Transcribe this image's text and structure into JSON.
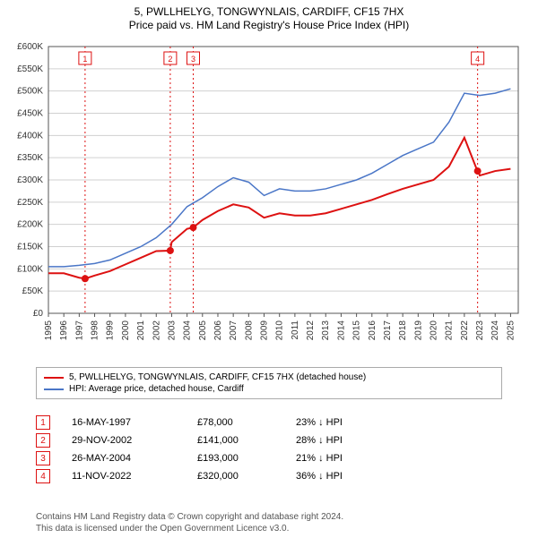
{
  "title_line1": "5, PWLLHELYG, TONGWYNLAIS, CARDIFF, CF15 7HX",
  "title_line2": "Price paid vs. HM Land Registry's House Price Index (HPI)",
  "style": {
    "background_color": "#ffffff",
    "grid_color": "#d0d0d0",
    "axis_color": "#555555",
    "title_fontsize": 12,
    "tick_fontsize": 10,
    "legend_fontsize": 10,
    "footer_fontsize": 10
  },
  "chart": {
    "type": "line",
    "xlim": [
      1995,
      2025.5
    ],
    "xtick_step": 1,
    "ylim": [
      0,
      600000
    ],
    "ytick_step": 50000,
    "yticks": [
      "£0",
      "£50K",
      "£100K",
      "£150K",
      "£200K",
      "£250K",
      "£300K",
      "£350K",
      "£400K",
      "£450K",
      "£500K",
      "£550K",
      "£600K"
    ],
    "xticks": [
      "1995",
      "1996",
      "1997",
      "1998",
      "1999",
      "2000",
      "2001",
      "2002",
      "2003",
      "2004",
      "2005",
      "2006",
      "2007",
      "2008",
      "2009",
      "2010",
      "2011",
      "2012",
      "2013",
      "2014",
      "2015",
      "2016",
      "2017",
      "2018",
      "2019",
      "2020",
      "2021",
      "2022",
      "2023",
      "2024",
      "2025"
    ],
    "series": [
      {
        "key": "price_paid",
        "color": "#dd1111",
        "line_width": 2,
        "points": [
          [
            1995,
            90000
          ],
          [
            1996,
            90000
          ],
          [
            1997,
            80000
          ],
          [
            1997.4,
            78000
          ],
          [
            1998,
            85000
          ],
          [
            1999,
            95000
          ],
          [
            2000,
            110000
          ],
          [
            2001,
            125000
          ],
          [
            2002,
            140000
          ],
          [
            2002.9,
            141000
          ],
          [
            2003,
            160000
          ],
          [
            2004,
            190000
          ],
          [
            2004.4,
            193000
          ],
          [
            2005,
            210000
          ],
          [
            2006,
            230000
          ],
          [
            2007,
            245000
          ],
          [
            2008,
            238000
          ],
          [
            2009,
            215000
          ],
          [
            2010,
            225000
          ],
          [
            2011,
            220000
          ],
          [
            2012,
            220000
          ],
          [
            2013,
            225000
          ],
          [
            2014,
            235000
          ],
          [
            2015,
            245000
          ],
          [
            2016,
            255000
          ],
          [
            2017,
            268000
          ],
          [
            2018,
            280000
          ],
          [
            2019,
            290000
          ],
          [
            2020,
            300000
          ],
          [
            2021,
            330000
          ],
          [
            2022,
            395000
          ],
          [
            2022.85,
            320000
          ],
          [
            2022.9,
            320000
          ],
          [
            2023,
            310000
          ],
          [
            2024,
            320000
          ],
          [
            2025,
            325000
          ]
        ]
      },
      {
        "key": "hpi",
        "color": "#4a76c7",
        "line_width": 1.5,
        "points": [
          [
            1995,
            105000
          ],
          [
            1996,
            105000
          ],
          [
            1997,
            108000
          ],
          [
            1998,
            112000
          ],
          [
            1999,
            120000
          ],
          [
            2000,
            135000
          ],
          [
            2001,
            150000
          ],
          [
            2002,
            170000
          ],
          [
            2003,
            200000
          ],
          [
            2004,
            240000
          ],
          [
            2005,
            260000
          ],
          [
            2006,
            285000
          ],
          [
            2007,
            305000
          ],
          [
            2008,
            295000
          ],
          [
            2009,
            265000
          ],
          [
            2010,
            280000
          ],
          [
            2011,
            275000
          ],
          [
            2012,
            275000
          ],
          [
            2013,
            280000
          ],
          [
            2014,
            290000
          ],
          [
            2015,
            300000
          ],
          [
            2016,
            315000
          ],
          [
            2017,
            335000
          ],
          [
            2018,
            355000
          ],
          [
            2019,
            370000
          ],
          [
            2020,
            385000
          ],
          [
            2021,
            430000
          ],
          [
            2022,
            495000
          ],
          [
            2023,
            490000
          ],
          [
            2024,
            495000
          ],
          [
            2025,
            505000
          ]
        ]
      }
    ],
    "markers": [
      {
        "n": "1",
        "x": 1997.38,
        "y": 78000,
        "color": "#dd1111"
      },
      {
        "n": "2",
        "x": 2002.91,
        "y": 141000,
        "color": "#dd1111"
      },
      {
        "n": "3",
        "x": 2004.4,
        "y": 193000,
        "color": "#dd1111"
      },
      {
        "n": "4",
        "x": 2022.86,
        "y": 320000,
        "color": "#dd1111"
      }
    ],
    "marker_vertical_line_color": "#dd1111",
    "marker_vertical_line_dash": "2,3"
  },
  "legend": {
    "items": [
      {
        "color": "#dd1111",
        "label": "5, PWLLHELYG, TONGWYNLAIS, CARDIFF, CF15 7HX (detached house)"
      },
      {
        "color": "#4a76c7",
        "label": "HPI: Average price, detached house, Cardiff"
      }
    ]
  },
  "events": [
    {
      "n": "1",
      "date": "16-MAY-1997",
      "price": "£78,000",
      "pct": "23% ↓ HPI"
    },
    {
      "n": "2",
      "date": "29-NOV-2002",
      "price": "£141,000",
      "pct": "28% ↓ HPI"
    },
    {
      "n": "3",
      "date": "26-MAY-2004",
      "price": "£193,000",
      "pct": "21% ↓ HPI"
    },
    {
      "n": "4",
      "date": "11-NOV-2022",
      "price": "£320,000",
      "pct": "36% ↓ HPI"
    }
  ],
  "footer_line1": "Contains HM Land Registry data © Crown copyright and database right 2024.",
  "footer_line2": "This data is licensed under the Open Government Licence v3.0."
}
